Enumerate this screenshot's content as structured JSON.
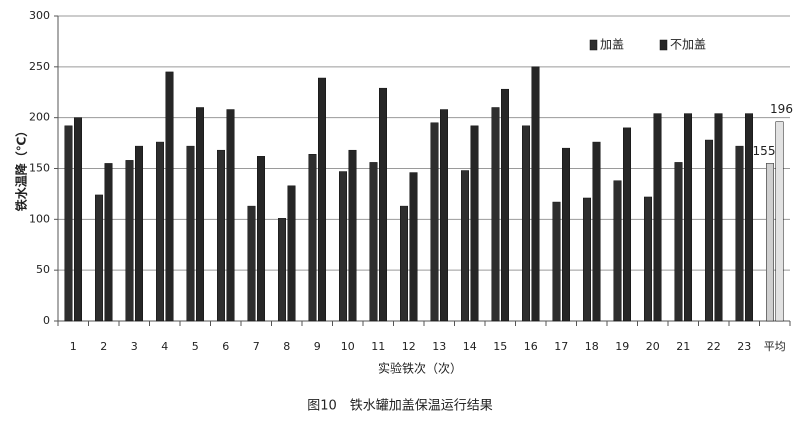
{
  "chart_data": {
    "type": "bar",
    "caption": "图10　铁水罐加盖保温运行结果",
    "y_label": "铁水温降（℃）",
    "x_label": "实验铁次（次）",
    "categories": [
      "1",
      "2",
      "3",
      "4",
      "5",
      "6",
      "7",
      "8",
      "9",
      "10",
      "11",
      "12",
      "13",
      "14",
      "15",
      "16",
      "17",
      "18",
      "19",
      "20",
      "21",
      "22",
      "23",
      "平均"
    ],
    "series": [
      {
        "name": "加盖",
        "color": "#2e2e2e",
        "colors": [
          "#2e2e2e",
          "#2e2e2e",
          "#2e2e2e",
          "#2e2e2e",
          "#2e2e2e",
          "#2e2e2e",
          "#2e2e2e",
          "#2e2e2e",
          "#2e2e2e",
          "#2e2e2e",
          "#2e2e2e",
          "#2e2e2e",
          "#2e2e2e",
          "#2e2e2e",
          "#2e2e2e",
          "#2e2e2e",
          "#2e2e2e",
          "#2e2e2e",
          "#2e2e2e",
          "#2e2e2e",
          "#2e2e2e",
          "#2e2e2e",
          "#2e2e2e",
          "#cfcfcf"
        ],
        "values": [
          192,
          124,
          158,
          176,
          172,
          168,
          113,
          101,
          164,
          147,
          156,
          113,
          195,
          148,
          210,
          192,
          117,
          121,
          138,
          122,
          156,
          178,
          172,
          155
        ],
        "value_labels": [
          null,
          null,
          null,
          null,
          null,
          null,
          null,
          null,
          null,
          null,
          null,
          null,
          null,
          null,
          null,
          null,
          null,
          null,
          null,
          null,
          null,
          null,
          null,
          "155"
        ]
      },
      {
        "name": "不加盖",
        "color": "#262626",
        "colors": [
          "#262626",
          "#262626",
          "#262626",
          "#262626",
          "#262626",
          "#262626",
          "#262626",
          "#262626",
          "#262626",
          "#262626",
          "#262626",
          "#262626",
          "#262626",
          "#262626",
          "#262626",
          "#262626",
          "#262626",
          "#262626",
          "#262626",
          "#262626",
          "#262626",
          "#262626",
          "#262626",
          "#e2e2e2"
        ],
        "values": [
          200,
          155,
          172,
          245,
          210,
          208,
          162,
          133,
          239,
          168,
          229,
          146,
          208,
          192,
          228,
          250,
          170,
          176,
          190,
          204,
          204,
          204,
          204,
          196
        ],
        "value_labels": [
          null,
          null,
          null,
          null,
          null,
          null,
          null,
          null,
          null,
          null,
          null,
          null,
          null,
          null,
          null,
          null,
          null,
          null,
          null,
          null,
          null,
          null,
          null,
          "196"
        ]
      }
    ],
    "ylim": [
      0,
      300
    ],
    "yticks": [
      0,
      50,
      100,
      150,
      200,
      250,
      300
    ],
    "grid": true,
    "legend": "upper right"
  }
}
